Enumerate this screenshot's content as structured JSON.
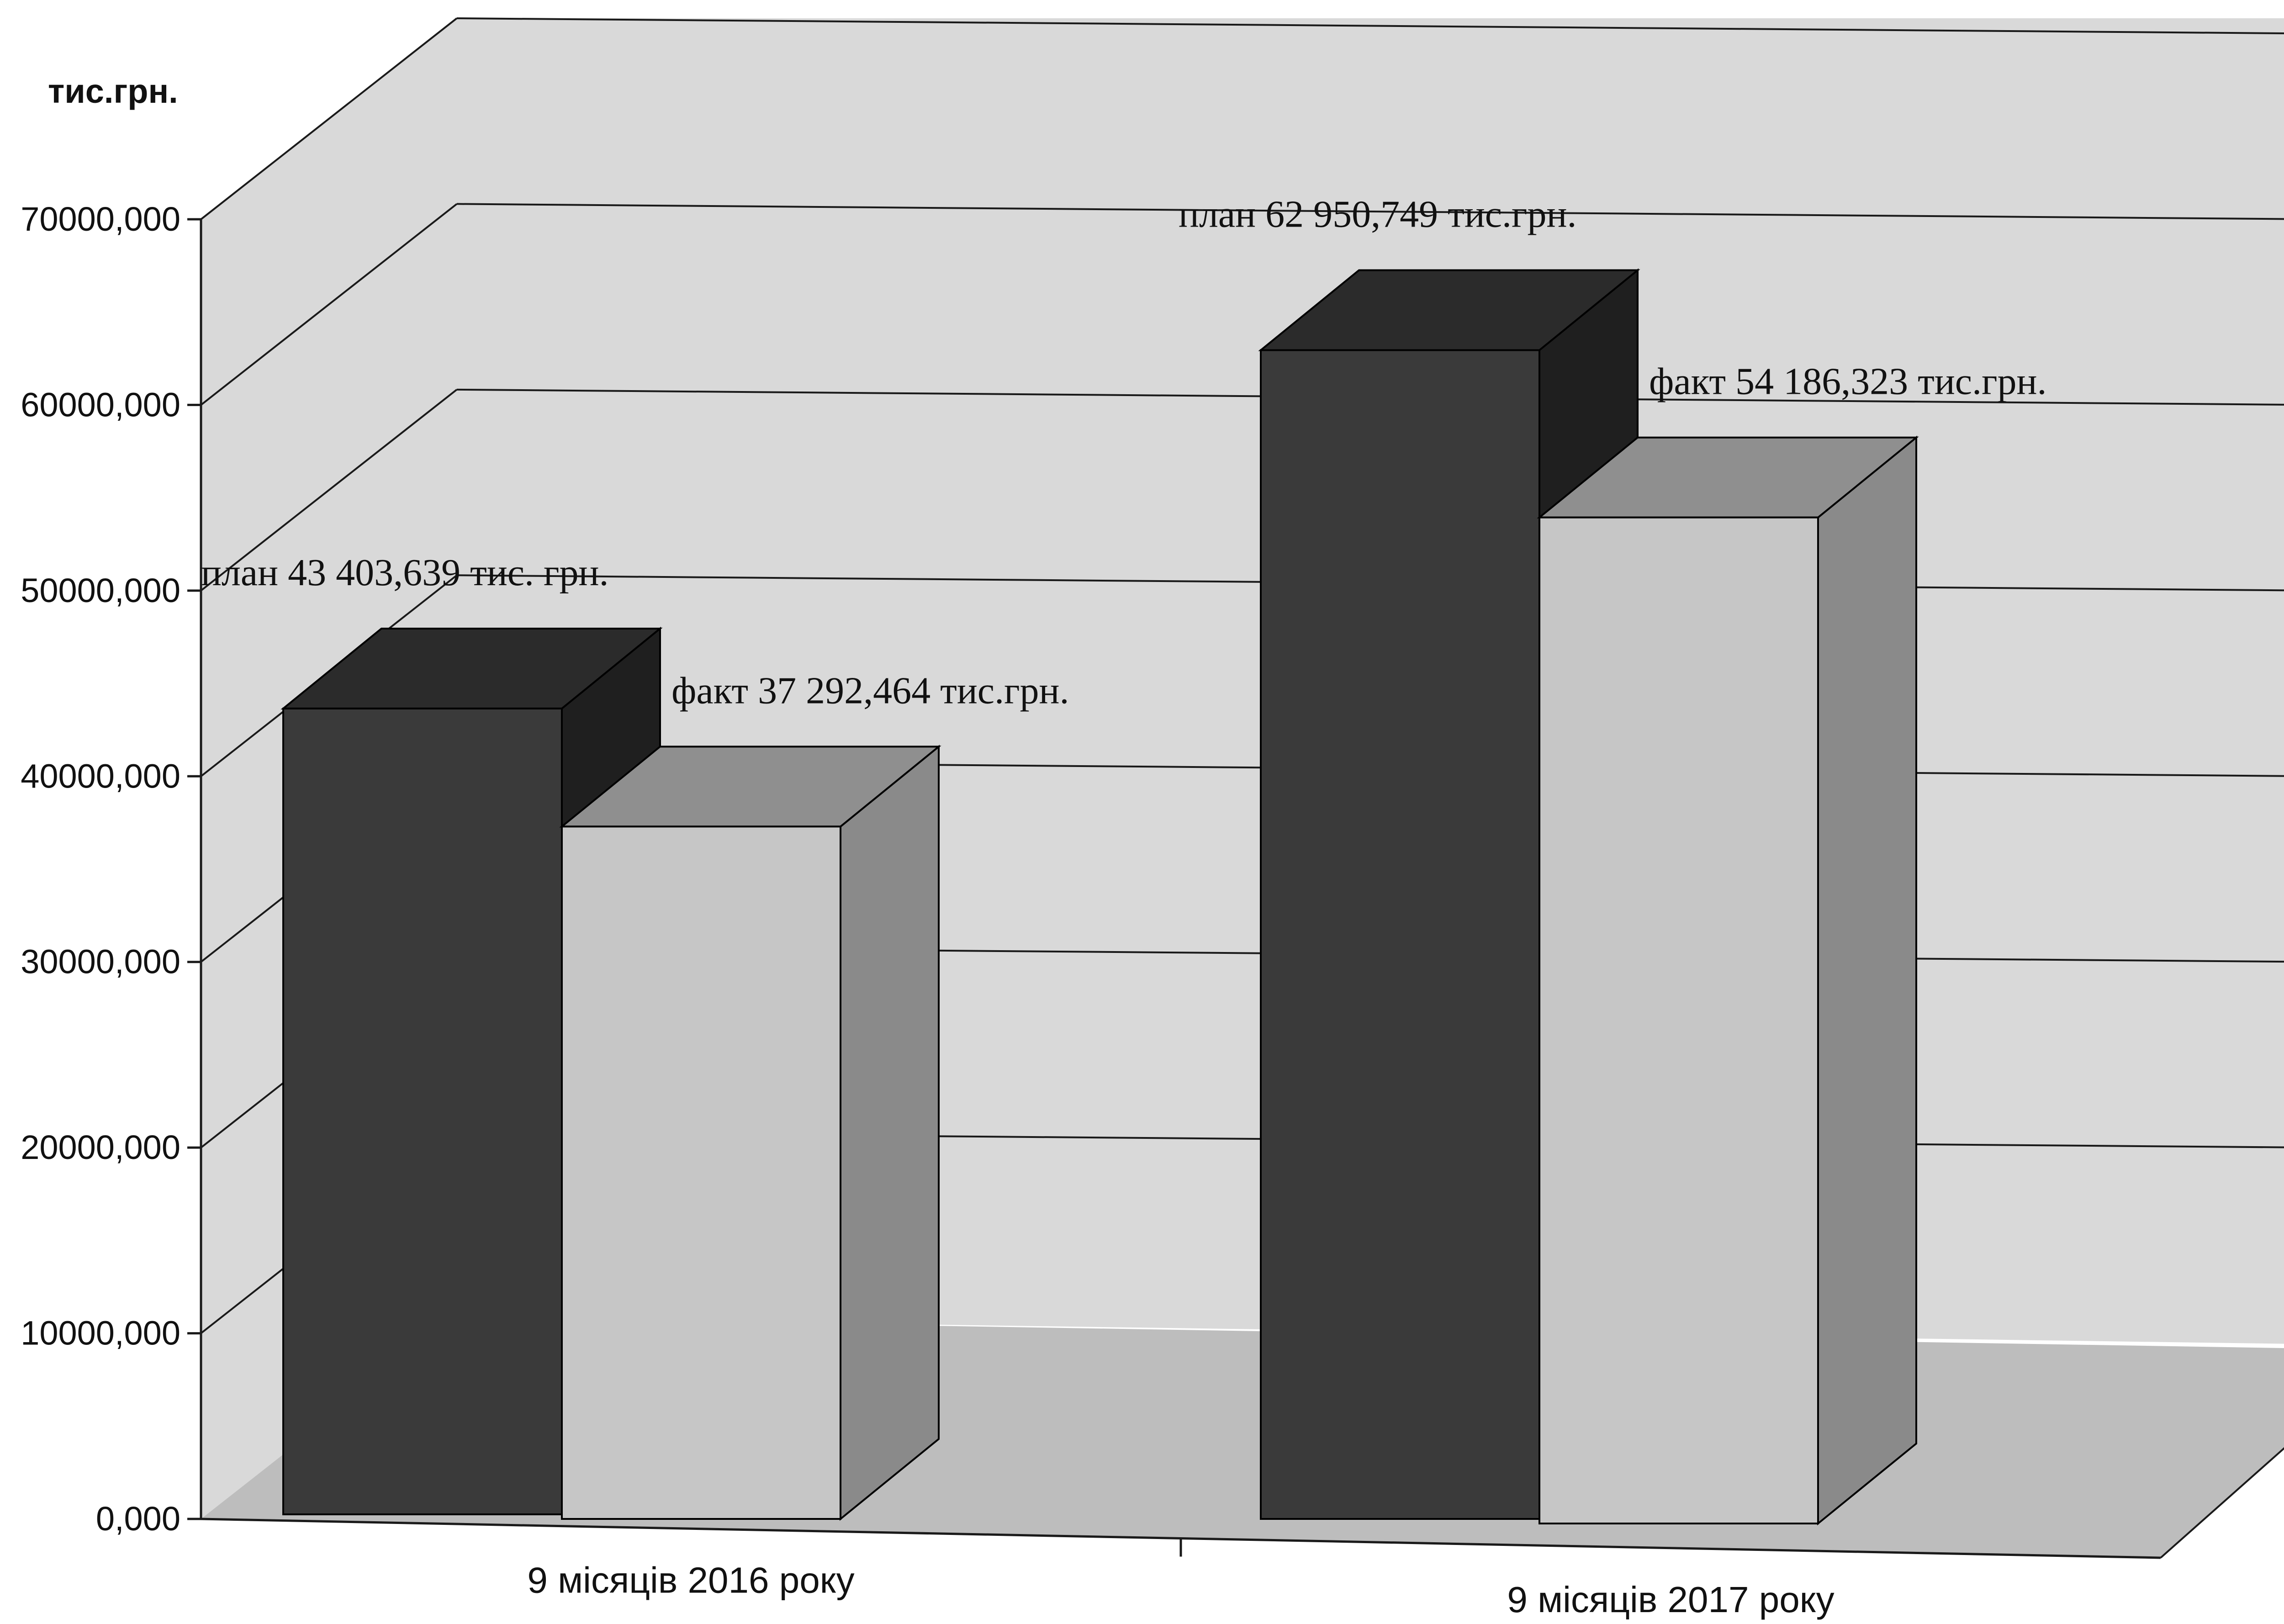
{
  "chart_data": {
    "type": "bar",
    "ylabel": "тис.грн.",
    "categories": [
      "9 місяців 2016 року",
      "9 місяців 2017 року"
    ],
    "series": [
      {
        "values": [
          43403.639,
          62950.749
        ]
      },
      {
        "values": [
          37292.464,
          54186.323
        ]
      }
    ],
    "data_labels": [
      [
        "план 43 403,639 тис. грн.",
        "план 62 950,749 тис.грн."
      ],
      [
        "факт 37 292,464 тис.грн.",
        "факт 54 186,323 тис.грн."
      ]
    ],
    "y_ticks": [
      "0,000",
      "10000,000",
      "20000,000",
      "30000,000",
      "40000,000",
      "50000,000",
      "60000,000",
      "70000,000"
    ],
    "ylim": [
      0,
      70000
    ],
    "grid": true,
    "legend": "none",
    "style": "3d-column",
    "colors": {
      "background": "#ffffff",
      "wall": "#d9d9d9",
      "floor": "#bdbdbd",
      "gridline": "#1a1a1a",
      "series_0_front": "#3a3a3a",
      "series_0_top": "#2b2b2b",
      "series_0_side": "#1f1f1f",
      "series_1_front": "#c6c6c6",
      "series_1_top": "#8f8f8f",
      "series_1_side": "#8a8a8a",
      "text": "#111111"
    }
  }
}
